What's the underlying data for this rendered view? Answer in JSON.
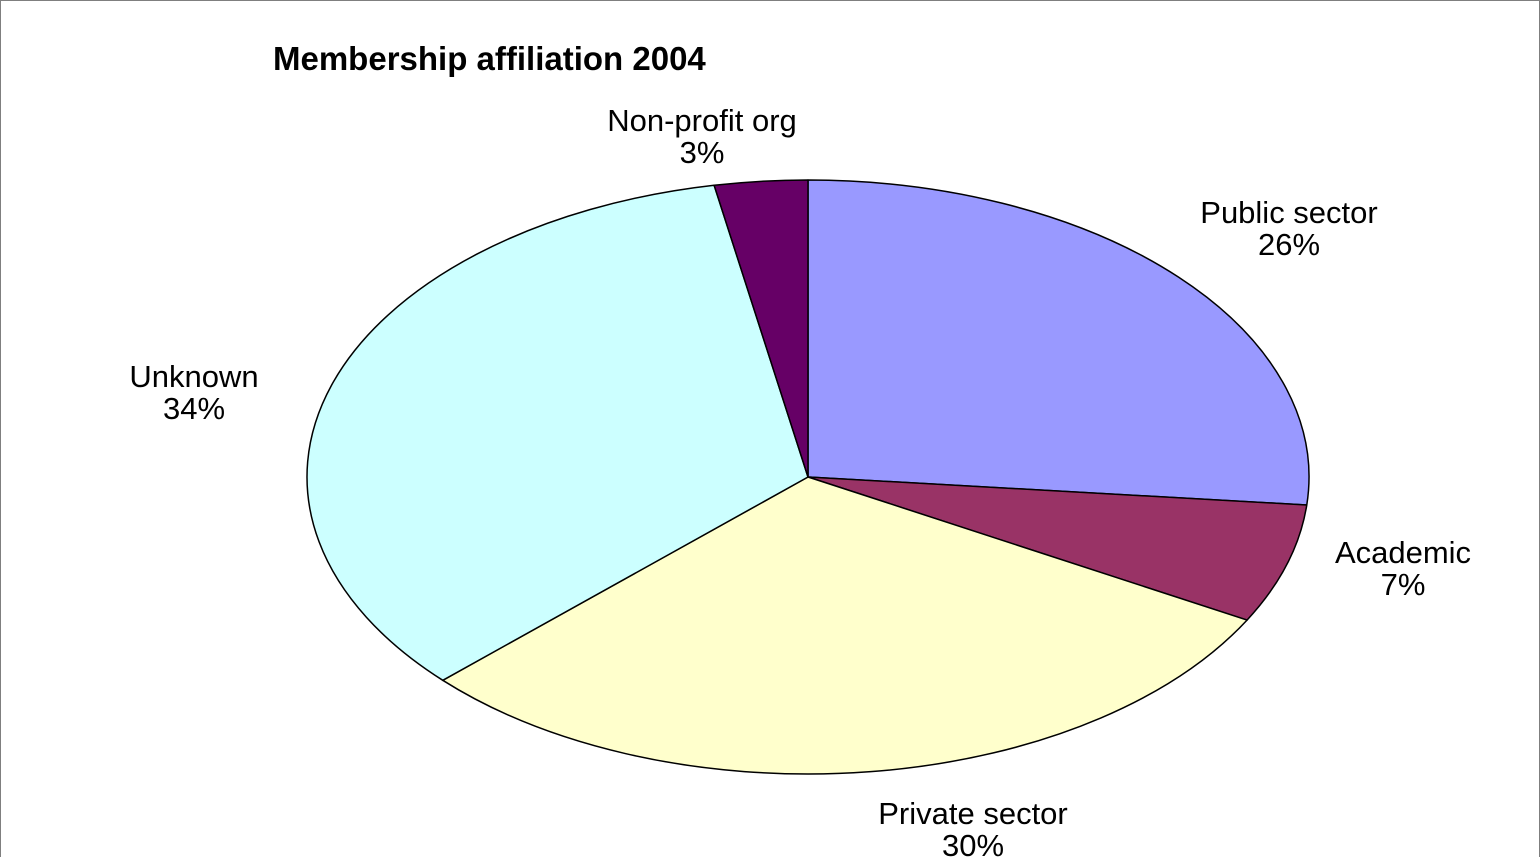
{
  "chart_data": {
    "type": "pie",
    "title": "Membership affiliation 2004",
    "slices": [
      {
        "label": "Public sector",
        "percent_label": "26%",
        "value": 26.5,
        "color": "#9999ff"
      },
      {
        "label": "Academic",
        "percent_label": "7%",
        "value": 6.5,
        "color": "#993366"
      },
      {
        "label": "Private sector",
        "percent_label": "30%",
        "value": 30,
        "color": "#ffffcc"
      },
      {
        "label": "Unknown",
        "percent_label": "34%",
        "value": 34,
        "color": "#ccffff"
      },
      {
        "label": "Non-profit org",
        "percent_label": "3%",
        "value": 3,
        "color": "#660066"
      }
    ],
    "legend": "none",
    "start": "12 o'clock",
    "direction": "clockwise"
  }
}
